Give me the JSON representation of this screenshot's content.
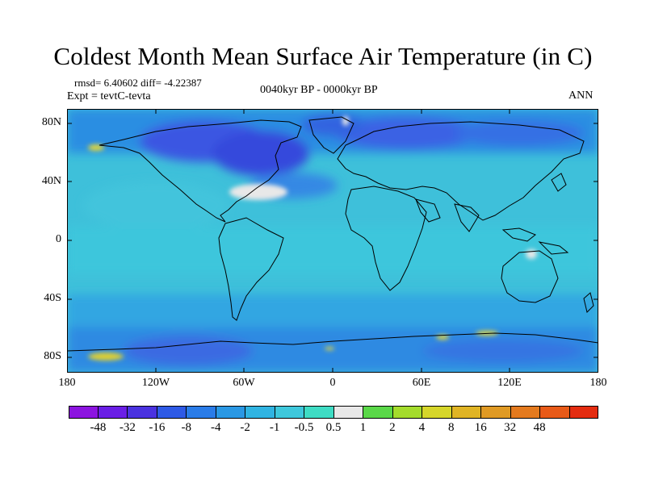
{
  "header": {
    "title": "Coldest Month Mean Surface Air Temperature (in C)",
    "stats": "rmsd= 6.40602 diff= -4.22387",
    "expt": "Expt = tevtC-tevta",
    "period": "0040kyr BP - 0000kyr BP",
    "season": "ANN"
  },
  "map": {
    "y_tick_labels": [
      "80N",
      "40N",
      "0",
      "40S",
      "80S"
    ],
    "x_tick_labels": [
      "180",
      "120W",
      "60W",
      "0",
      "60E",
      "120E",
      "180"
    ],
    "background_color": "#3ec0da",
    "land_outline_color": "#000000"
  },
  "colorbar": {
    "labels": [
      "-48",
      "-32",
      "-16",
      "-8",
      "-4",
      "-2",
      "-1",
      "-0.5",
      "0.5",
      "1",
      "2",
      "4",
      "8",
      "16",
      "32",
      "48"
    ],
    "colors": [
      "#8c14e0",
      "#6a1ee6",
      "#4a32e0",
      "#2e5ae6",
      "#2a7ce8",
      "#2a98e4",
      "#30b4e2",
      "#3ec8dc",
      "#3edcc4",
      "#e8e8e8",
      "#5ad848",
      "#a4dc2c",
      "#d6d62a",
      "#e0b424",
      "#e09a24",
      "#e47a1e",
      "#e85a18",
      "#e42c10"
    ]
  }
}
